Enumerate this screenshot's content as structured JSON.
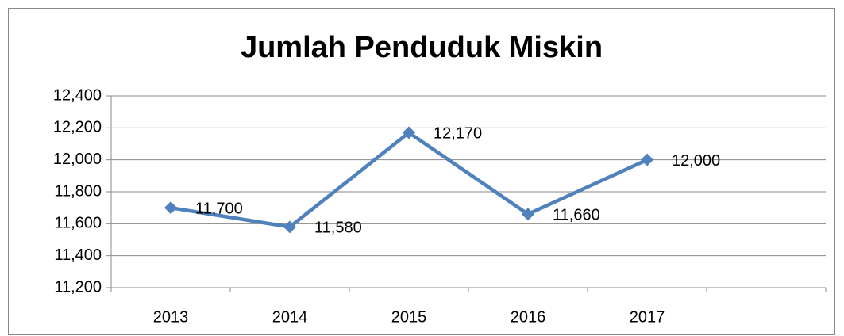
{
  "chart_data": {
    "type": "line",
    "title": "Jumlah Penduduk Miskin",
    "categories": [
      "2013",
      "2014",
      "2015",
      "2016",
      "2017",
      null
    ],
    "series": [
      {
        "name": "Jumlah Penduduk Miskin",
        "color": "#4f81bd",
        "values": [
          11700,
          11580,
          12170,
          11660,
          12000,
          null
        ],
        "value_labels": [
          "11,700",
          "11,580",
          "12,170",
          "11,660",
          "12,000",
          null
        ]
      }
    ],
    "ylim": [
      11200,
      12400
    ],
    "yticks": [
      {
        "value": 11200,
        "label": "11,200"
      },
      {
        "value": 11400,
        "label": "11,400"
      },
      {
        "value": 11600,
        "label": "11,600"
      },
      {
        "value": 11800,
        "label": "11,800"
      },
      {
        "value": 12000,
        "label": "12,000"
      },
      {
        "value": 12200,
        "label": "12,200"
      },
      {
        "value": 12400,
        "label": "12,400"
      }
    ],
    "grid": true
  }
}
